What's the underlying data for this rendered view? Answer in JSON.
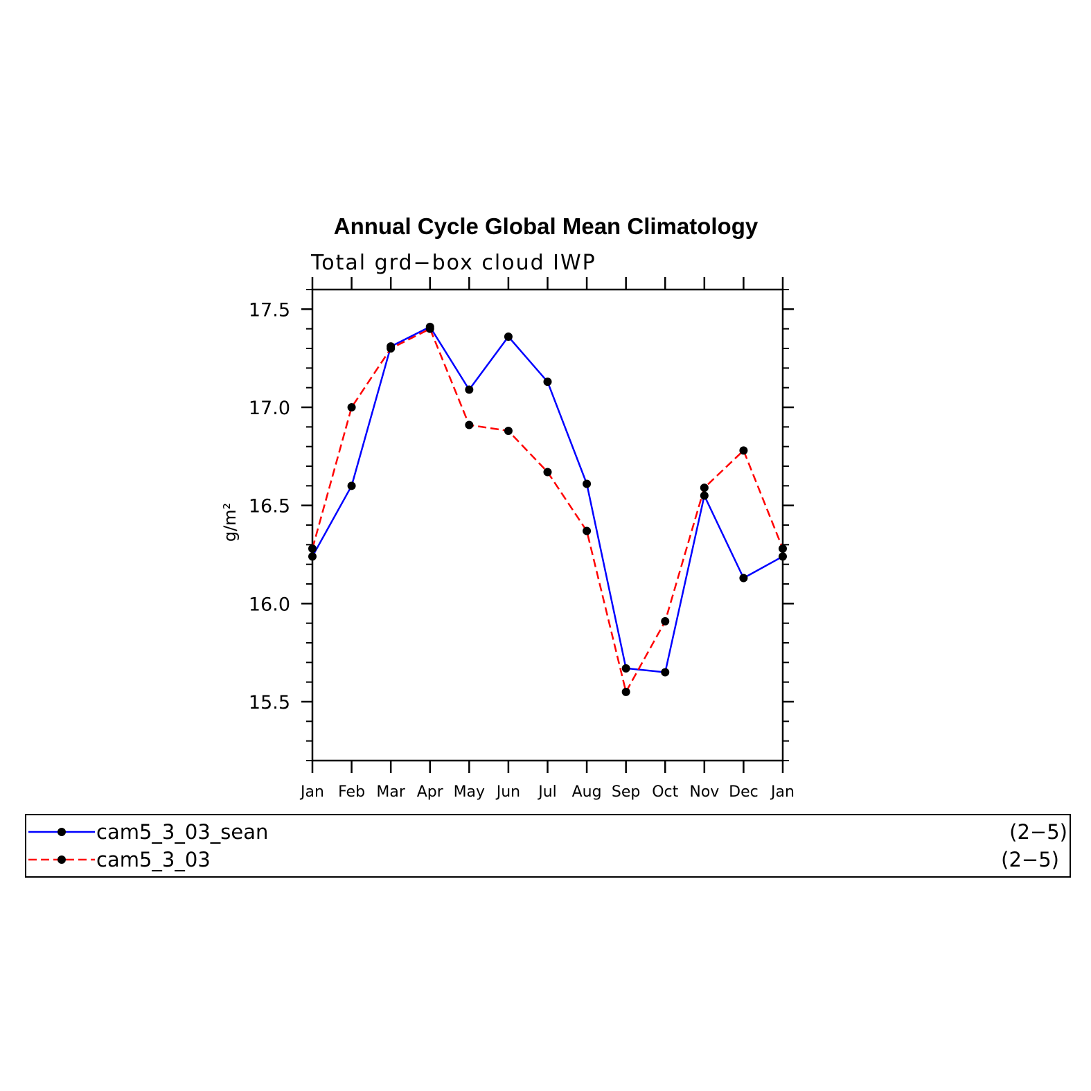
{
  "chart_data": {
    "type": "line",
    "title": "Annual Cycle Global Mean Climatology",
    "subtitle": "Total grd−box cloud IWP",
    "xlabel": "",
    "ylabel": "g/m²",
    "categories": [
      "Jan",
      "Feb",
      "Mar",
      "Apr",
      "May",
      "Jun",
      "Jul",
      "Aug",
      "Sep",
      "Oct",
      "Nov",
      "Dec",
      "Jan"
    ],
    "ylim": [
      15.2,
      17.6
    ],
    "yticks": [
      15.5,
      16.0,
      16.5,
      17.0,
      17.5
    ],
    "ytick_labels": [
      "15.5",
      "16.0",
      "16.5",
      "17.0",
      "17.5"
    ],
    "grid": false,
    "legend_position": "bottom",
    "series": [
      {
        "name": "cam5_3_03_sean",
        "legend_suffix": "(2−5)",
        "color": "#0000ff",
        "dash": "solid",
        "values": [
          16.24,
          16.6,
          17.31,
          17.41,
          17.09,
          17.36,
          17.13,
          16.61,
          15.67,
          15.65,
          16.55,
          16.13,
          16.24
        ]
      },
      {
        "name": "cam5_3_03",
        "legend_suffix": "(2−5)",
        "color": "#ff0000",
        "dash": "dashed",
        "values": [
          16.28,
          17.0,
          17.3,
          17.4,
          16.91,
          16.88,
          16.67,
          16.37,
          15.55,
          15.91,
          16.59,
          16.78,
          16.28
        ]
      }
    ],
    "marker_color": "#000000"
  }
}
